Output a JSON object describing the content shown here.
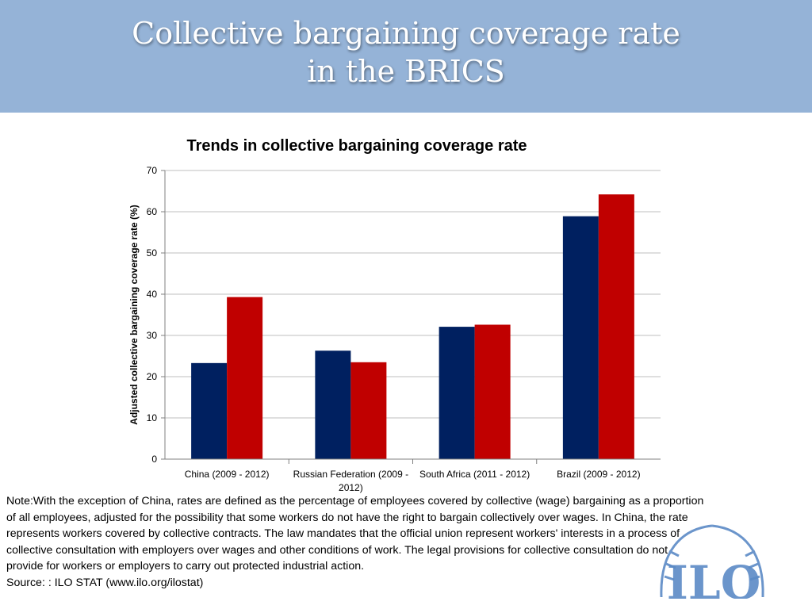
{
  "slide": {
    "title_line1": "Collective bargaining coverage rate",
    "title_line2": "in the BRICS"
  },
  "colors": {
    "header_bg": "#95b3d7",
    "series_1": "#002060",
    "series_2": "#c00000",
    "grid": "#bfbfbf",
    "logo": "#5b8ac6"
  },
  "chart_data": {
    "type": "bar",
    "title": "Trends in collective bargaining coverage rate",
    "xlabel": "",
    "ylabel": "Adjusted collective bargaining coverage rate (%)",
    "ylim": [
      0,
      70
    ],
    "yticks": [
      0,
      10,
      20,
      30,
      40,
      50,
      60,
      70
    ],
    "grid": true,
    "legend": "none",
    "categories": [
      [
        "China (2009 - 2012)"
      ],
      [
        "Russian Federation (2009 -",
        "2012)"
      ],
      [
        "South Africa (2011 - 2012)"
      ],
      [
        "Brazil (2009 - 2012)"
      ]
    ],
    "series": [
      {
        "values": [
          23.3,
          26.3,
          32.1,
          58.9
        ]
      },
      {
        "values": [
          39.3,
          23.5,
          32.6,
          64.2
        ]
      }
    ]
  },
  "note": {
    "lines": [
      "Note:With the exception of China, rates are defined as the percentage of employees covered by collective (wage) bargaining as a proportion",
      "of all employees, adjusted for the possibility that some workers do not have the right to bargain collectively over wages. In China, the rate",
      "represents workers covered by collective contracts. The law mandates that the official union represent workers' interests in a process of",
      "collective consultation with employers over wages and other conditions of work. The legal provisions for collective consultation do not",
      "provide for workers or employers to carry out protected industrial action."
    ],
    "source": "Source: : ILO STAT (www.ilo.org/ilostat)"
  },
  "logo": {
    "icon": "ilo-logo-icon",
    "text": "ILO"
  }
}
